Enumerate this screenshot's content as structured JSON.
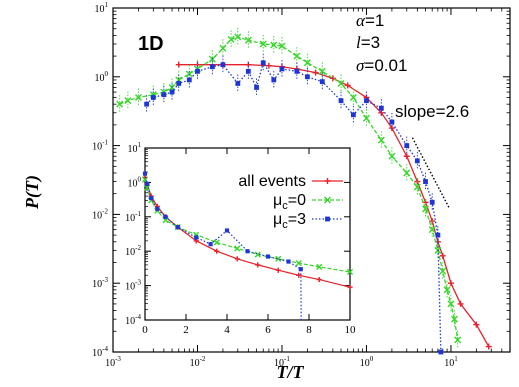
{
  "chart_data": [
    {
      "type": "line",
      "panel_label": "1D",
      "xlabel": "T/T",
      "ylabel": "P(T)",
      "xscale": "log",
      "yscale": "log",
      "xlim": [
        0.001,
        50
      ],
      "ylim": [
        0.0001,
        10
      ],
      "xticks": [
        "10-3",
        "10-2",
        "10-1",
        "100",
        "101"
      ],
      "yticks": [
        "10-4",
        "10-3",
        "10-2",
        "10-1",
        "100",
        "101"
      ],
      "params": [
        {
          "sym": "α",
          "rest": "=1"
        },
        {
          "sym": "l",
          "rest": "=3"
        },
        {
          "sym": "σ",
          "rest": "=0.01"
        }
      ],
      "slope_label": "slope=2.6",
      "slope_line": {
        "x": [
          3.5,
          9.5
        ],
        "y": [
          0.13,
          0.0125
        ]
      },
      "series": [
        {
          "name": "all events",
          "color": "#e8202b",
          "marker": "plus",
          "dash": "",
          "x": [
            0.006,
            0.01,
            0.02,
            0.04,
            0.07,
            0.1,
            0.15,
            0.25,
            0.4,
            0.6,
            1.0,
            1.5,
            2.0,
            3.0,
            4.0,
            5.0,
            6.0,
            7.0,
            8.0,
            10.0,
            13.0,
            20.0,
            28.0
          ],
          "y": [
            1.5,
            1.5,
            1.5,
            1.5,
            1.45,
            1.4,
            1.3,
            1.15,
            0.95,
            0.75,
            0.5,
            0.3,
            0.18,
            0.07,
            0.03,
            0.015,
            0.008,
            0.004,
            0.0025,
            0.001,
            0.0005,
            0.00025,
            0.00012
          ]
        },
        {
          "name": "μc=0",
          "color": "#37d62a",
          "marker": "cross",
          "dash": "4,2",
          "x": [
            0.0012,
            0.0015,
            0.002,
            0.003,
            0.004,
            0.005,
            0.006,
            0.008,
            0.01,
            0.015,
            0.02,
            0.025,
            0.03,
            0.04,
            0.06,
            0.08,
            0.1,
            0.15,
            0.2,
            0.3,
            0.5,
            0.7,
            1.0,
            1.5,
            2.0,
            3.0,
            4.0,
            5.0,
            6.0,
            7.0,
            8.0,
            9.0,
            10.0,
            11.0,
            12.0
          ],
          "y": [
            0.4,
            0.45,
            0.5,
            0.55,
            0.6,
            0.7,
            0.9,
            1.1,
            1.3,
            1.8,
            2.6,
            3.5,
            3.8,
            3.4,
            3.0,
            2.9,
            2.8,
            2.0,
            1.6,
            1.2,
            0.8,
            0.5,
            0.25,
            0.12,
            0.07,
            0.04,
            0.025,
            0.012,
            0.006,
            0.003,
            0.0015,
            0.0008,
            0.0005,
            0.0003,
            0.00015
          ]
        },
        {
          "name": "μc=3",
          "color": "#1f35d6",
          "marker": "square",
          "dash": "1.5,2",
          "x": [
            0.0025,
            0.003,
            0.004,
            0.005,
            0.006,
            0.008,
            0.01,
            0.015,
            0.02,
            0.03,
            0.04,
            0.05,
            0.06,
            0.08,
            0.1,
            0.15,
            0.2,
            0.3,
            0.5,
            0.7,
            1.0,
            1.5,
            2.0,
            3.0,
            4.0,
            5.0,
            6.0,
            7.0,
            7.6
          ],
          "y": [
            0.4,
            0.5,
            0.55,
            0.6,
            0.8,
            0.9,
            1.2,
            1.4,
            1.5,
            0.8,
            1.2,
            0.7,
            1.6,
            0.9,
            1.3,
            1.2,
            1.0,
            0.85,
            0.45,
            0.28,
            0.45,
            0.35,
            0.22,
            0.1,
            0.06,
            0.03,
            0.015,
            0.005,
            0.0001
          ]
        }
      ]
    },
    {
      "type": "line",
      "xscale": "linear",
      "yscale": "log",
      "xlim": [
        0,
        10
      ],
      "ylim": [
        0.0001,
        10
      ],
      "xticks": [
        "0",
        "2",
        "4",
        "6",
        "8",
        "10"
      ],
      "yticks": [
        "10-4",
        "10-3",
        "10-2",
        "10-1",
        "100",
        "101"
      ],
      "series": [
        {
          "name": "all events",
          "color": "#e8202b",
          "marker": "plus",
          "dash": "",
          "x": [
            0,
            0.1,
            0.3,
            0.6,
            1.0,
            1.6,
            2.5,
            3.5,
            4.5,
            5.5,
            6.5,
            7.5,
            8.5,
            10.0
          ],
          "y": [
            1.4,
            0.9,
            0.4,
            0.2,
            0.1,
            0.05,
            0.02,
            0.01,
            0.006,
            0.004,
            0.0028,
            0.002,
            0.0015,
            0.0009
          ]
        },
        {
          "name": "μc=0",
          "color": "#37d62a",
          "marker": "cross",
          "dash": "4,2",
          "x": [
            0,
            0.1,
            0.3,
            0.6,
            1.0,
            1.6,
            2.5,
            3.5,
            4.5,
            5.5,
            6.5,
            7.5,
            8.5,
            10.0
          ],
          "y": [
            1.2,
            0.7,
            0.3,
            0.15,
            0.08,
            0.05,
            0.03,
            0.018,
            0.012,
            0.008,
            0.006,
            0.0045,
            0.0035,
            0.0025
          ]
        },
        {
          "name": "μc=3",
          "color": "#1f35d6",
          "marker": "square",
          "dash": "1.5,2",
          "x": [
            0,
            0.1,
            0.3,
            0.6,
            1.0,
            1.6,
            2.5,
            3.2,
            4.0,
            5.0,
            6.0,
            7.0,
            7.6,
            7.62
          ],
          "y": [
            1.8,
            0.9,
            0.35,
            0.17,
            0.1,
            0.05,
            0.025,
            0.016,
            0.04,
            0.01,
            0.007,
            0.005,
            0.003,
            0.0001
          ]
        }
      ]
    }
  ],
  "legend": [
    {
      "pre": "all events",
      "sub": "",
      "post": ""
    },
    {
      "pre": "μ",
      "sub": "c",
      "post": "=0"
    },
    {
      "pre": "μ",
      "sub": "c",
      "post": "=3"
    }
  ]
}
